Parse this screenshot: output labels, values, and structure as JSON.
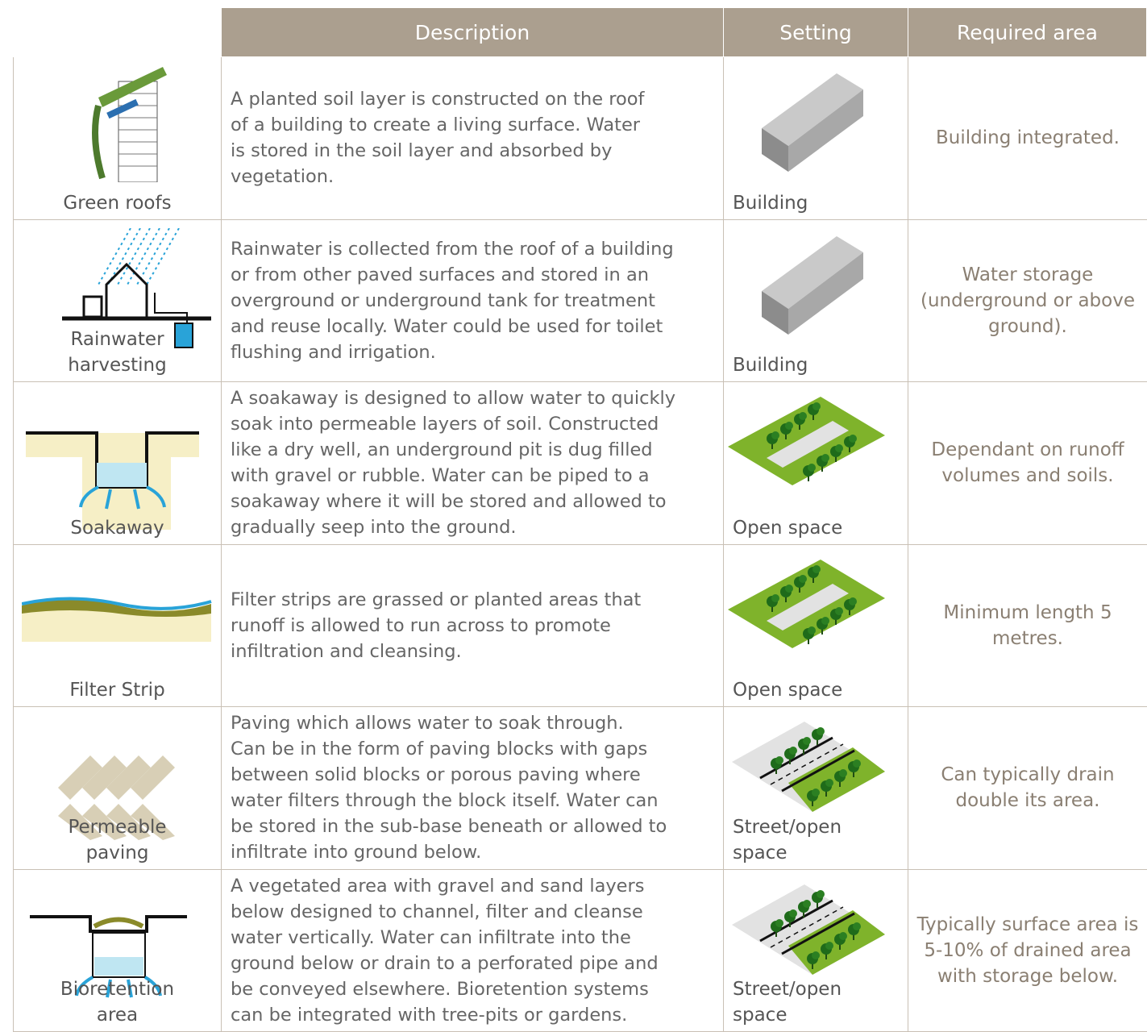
{
  "header": [
    "Description",
    "Setting",
    "Required area"
  ],
  "rows": [
    {
      "name": "Green roofs",
      "description": [
        "A planted soil layer is constructed on the roof",
        "of a building to create a living surface. Water",
        "is stored in the soil layer and absorbed by",
        "vegetation."
      ],
      "setting": "Building",
      "required_area": "Building integrated."
    },
    {
      "name": "Rainwater harvesting",
      "description": [
        "Rainwater is collected from the roof of a building",
        "or from other paved surfaces and stored in an",
        "overground or underground tank for treatment",
        "and reuse locally. Water could be used for toilet",
        "flushing and irrigation."
      ],
      "setting": "Building",
      "required_area": "Water storage (underground or above ground)."
    },
    {
      "name": "Soakaway",
      "description": [
        "A soakaway is designed to allow water to quickly",
        "soak into permeable layers of soil. Constructed",
        "like a dry well, an underground pit is dug filled",
        "with gravel or rubble. Water can be piped to a",
        "soakaway where it will be stored and allowed to",
        "gradually seep into the ground."
      ],
      "setting": "Open space",
      "required_area": "Dependant on runoff volumes and soils."
    },
    {
      "name": "Filter Strip",
      "description": [
        "Filter strips are grassed or planted areas that",
        "runoff is allowed to run across to promote",
        "infiltration and cleansing."
      ],
      "setting": "Open space",
      "required_area": "Minimum length 5 metres."
    },
    {
      "name": "Permeable paving",
      "description": [
        "Paving which allows water to soak through.",
        "Can be in the form of paving blocks with gaps",
        "between solid blocks or porous paving where",
        "water filters through the block itself. Water can",
        "be stored in the sub-base beneath or allowed to",
        "infiltrate into ground below."
      ],
      "setting": "Street/open space",
      "required_area": "Can typically drain double its area."
    },
    {
      "name": "Bioretention area",
      "description": [
        "A vegetated area with gravel and sand layers",
        "below designed to channel, filter and cleanse",
        "water vertically. Water can infiltrate into the",
        "ground below or drain to a perforated pipe and",
        "be conveyed elsewhere. Bioretention systems",
        "can be integrated with tree-pits or gardens."
      ],
      "setting": "Street/open space",
      "required_area": "Typically surface area is 5-10% of drained area with storage below."
    }
  ]
}
